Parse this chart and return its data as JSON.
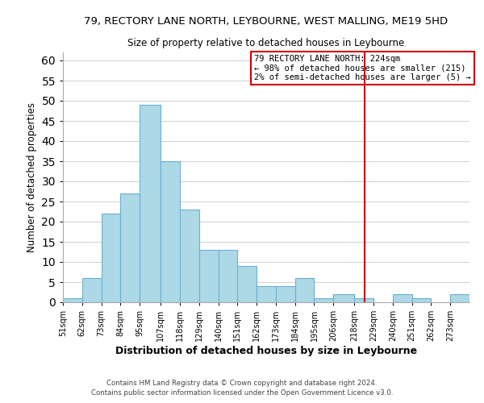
{
  "title": "79, RECTORY LANE NORTH, LEYBOURNE, WEST MALLING, ME19 5HD",
  "subtitle": "Size of property relative to detached houses in Leybourne",
  "xlabel": "Distribution of detached houses by size in Leybourne",
  "ylabel": "Number of detached properties",
  "bin_labels": [
    "51sqm",
    "62sqm",
    "73sqm",
    "84sqm",
    "95sqm",
    "107sqm",
    "118sqm",
    "129sqm",
    "140sqm",
    "151sqm",
    "162sqm",
    "173sqm",
    "184sqm",
    "195sqm",
    "206sqm",
    "218sqm",
    "229sqm",
    "240sqm",
    "251sqm",
    "262sqm",
    "273sqm"
  ],
  "bar_heights": [
    1,
    6,
    22,
    27,
    49,
    35,
    23,
    13,
    13,
    9,
    4,
    4,
    6,
    1,
    2,
    1,
    0,
    2,
    1,
    0,
    2
  ],
  "bar_color": "#add8e6",
  "bar_edge_color": "#6ab0d4",
  "ylim": [
    0,
    62
  ],
  "yticks": [
    0,
    5,
    10,
    15,
    20,
    25,
    30,
    35,
    40,
    45,
    50,
    55,
    60
  ],
  "property_line_x": 224,
  "bin_edges": [
    51,
    62,
    73,
    84,
    95,
    107,
    118,
    129,
    140,
    151,
    162,
    173,
    184,
    195,
    206,
    218,
    229,
    240,
    251,
    262,
    273,
    284
  ],
  "annotation_title": "79 RECTORY LANE NORTH: 224sqm",
  "annotation_line1": "← 98% of detached houses are smaller (215)",
  "annotation_line2": "2% of semi-detached houses are larger (5) →",
  "annotation_box_color": "#ffffff",
  "annotation_box_edge_color": "#cc0000",
  "line_color": "#cc0000",
  "footer1": "Contains HM Land Registry data © Crown copyright and database right 2024.",
  "footer2": "Contains public sector information licensed under the Open Government Licence v3.0.",
  "background_color": "#ffffff",
  "grid_color": "#d0d0d0"
}
